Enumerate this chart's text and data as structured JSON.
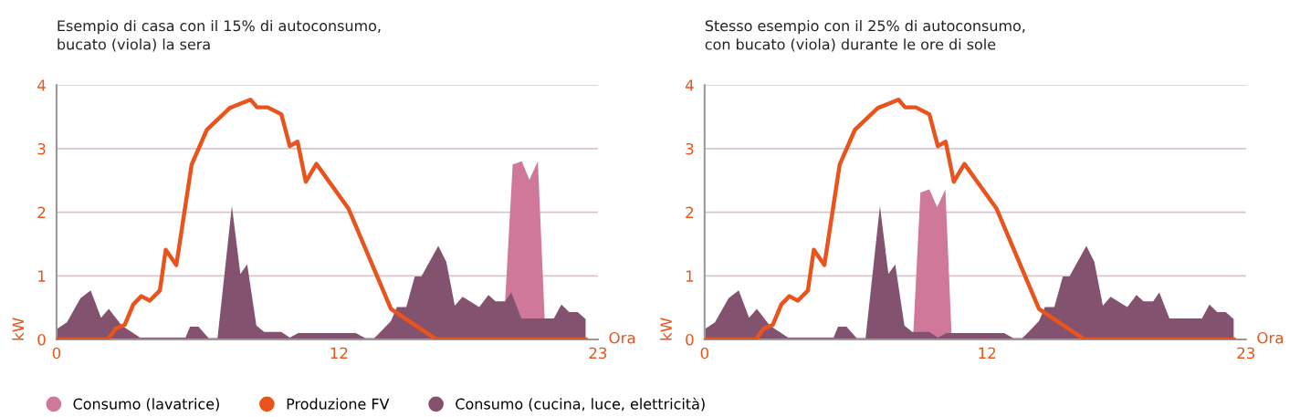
{
  "chart_data": [
    {
      "type": "area",
      "title": "Esempio di casa con il 15% di autoconsumo,\nbucato (viola) la sera",
      "xlabel": "Ora",
      "ylabel": "kW",
      "xlim": [
        0,
        23
      ],
      "xticks": [
        0,
        12,
        23
      ],
      "ylim": [
        0,
        4
      ],
      "yticks": [
        0,
        1,
        2,
        3,
        4
      ],
      "grid": "y",
      "legend": "bottom",
      "marker": "none",
      "series": [
        {
          "name": "Consumo (lavatrice)",
          "color": "#cf7899",
          "x": [
            19.06,
            19.38,
            19.77,
            20.09,
            20.45,
            20.74
          ],
          "values": [
            0.6,
            2.75,
            2.8,
            2.51,
            2.8,
            0.33
          ]
        },
        {
          "name": "Produzione FV",
          "type": "line",
          "color": "#e8541c",
          "x": [
            0.03,
            2.18,
            2.51,
            2.9,
            3.26,
            3.6,
            3.96,
            4.39,
            4.64,
            5.09,
            5.74,
            6.39,
            7.36,
            8.24,
            8.52,
            8.97,
            9.55,
            9.91,
            10.24,
            10.59,
            11.04,
            12.4,
            14.21,
            15.25,
            16.15,
            22.48
          ],
          "values": [
            0,
            0,
            0.17,
            0.23,
            0.55,
            0.68,
            0.61,
            0.77,
            1.41,
            1.17,
            2.75,
            3.3,
            3.64,
            3.77,
            3.65,
            3.65,
            3.54,
            3.04,
            3.11,
            2.48,
            2.76,
            2.06,
            0.48,
            0.22,
            0,
            0
          ]
        },
        {
          "name": "Consumo (cucina, luce, elettricità)",
          "color": "#82526f",
          "x": [
            0.03,
            0.44,
            1.02,
            1.45,
            1.89,
            2.22,
            2.77,
            3.55,
            5.48,
            5.67,
            6.03,
            6.46,
            6.84,
            7.45,
            7.81,
            8.1,
            8.49,
            8.82,
            9.55,
            9.91,
            10.27,
            12.72,
            13.11,
            13.5,
            13.69,
            14.21,
            14.46,
            14.86,
            15.22,
            15.5,
            16.22,
            16.56,
            16.92,
            17.25,
            17.96,
            18.35,
            18.65,
            19.06,
            19.32,
            19.75,
            21.13,
            21.45,
            21.78,
            22.14,
            22.48
          ],
          "values": [
            0.17,
            0.27,
            0.65,
            0.77,
            0.34,
            0.48,
            0.22,
            0.03,
            0.03,
            0.2,
            0.2,
            0.02,
            0.02,
            2.1,
            1.03,
            1.18,
            0.22,
            0.12,
            0.12,
            0.03,
            0.1,
            0.1,
            0.02,
            0.02,
            0.09,
            0.29,
            0.51,
            0.51,
            0.99,
            0.99,
            1.47,
            1.22,
            0.53,
            0.67,
            0.51,
            0.7,
            0.6,
            0.6,
            0.74,
            0.33,
            0.33,
            0.55,
            0.43,
            0.43,
            0.32
          ]
        }
      ]
    },
    {
      "type": "area",
      "title": "Stesso esempio con il 25% di autoconsumo,\ncon bucato (viola) durante le ore di sole",
      "xlabel": "Ora",
      "ylabel": "kW",
      "xlim": [
        0,
        23
      ],
      "xticks": [
        0,
        12,
        23
      ],
      "ylim": [
        0,
        4
      ],
      "yticks": [
        0,
        1,
        2,
        3,
        4
      ],
      "grid": "y",
      "marker": "none",
      "series": [
        {
          "color": "#cf7899",
          "x": [
            8.87,
            9.17,
            9.55,
            9.88,
            10.23,
            10.49
          ],
          "values": [
            0.12,
            2.31,
            2.36,
            2.08,
            2.36,
            0.1
          ]
        },
        {
          "type": "line",
          "color": "#e8541c",
          "x": [
            0.03,
            2.18,
            2.51,
            2.9,
            3.26,
            3.6,
            3.96,
            4.39,
            4.64,
            5.09,
            5.74,
            6.39,
            7.36,
            8.24,
            8.52,
            8.97,
            9.55,
            9.91,
            10.24,
            10.59,
            11.04,
            12.4,
            14.21,
            15.25,
            16.15,
            22.48
          ],
          "values": [
            0,
            0,
            0.17,
            0.23,
            0.55,
            0.68,
            0.61,
            0.77,
            1.41,
            1.17,
            2.75,
            3.3,
            3.64,
            3.77,
            3.65,
            3.65,
            3.54,
            3.04,
            3.11,
            2.48,
            2.76,
            2.06,
            0.48,
            0.22,
            0,
            0
          ]
        },
        {
          "color": "#82526f",
          "x": [
            0.03,
            0.44,
            1.02,
            1.45,
            1.89,
            2.22,
            2.77,
            3.55,
            5.48,
            5.67,
            6.03,
            6.46,
            6.84,
            7.45,
            7.81,
            8.1,
            8.49,
            8.82,
            9.55,
            9.91,
            10.27,
            12.72,
            13.11,
            13.5,
            13.69,
            14.21,
            14.46,
            14.86,
            15.22,
            15.5,
            16.22,
            16.56,
            16.92,
            17.25,
            17.96,
            18.35,
            18.65,
            19.06,
            19.32,
            19.75,
            21.13,
            21.45,
            21.78,
            22.14,
            22.48
          ],
          "values": [
            0.17,
            0.27,
            0.65,
            0.77,
            0.34,
            0.48,
            0.22,
            0.03,
            0.03,
            0.2,
            0.2,
            0.02,
            0.02,
            2.1,
            1.03,
            1.18,
            0.22,
            0.12,
            0.12,
            0.03,
            0.1,
            0.1,
            0.02,
            0.02,
            0.09,
            0.29,
            0.51,
            0.51,
            0.99,
            0.99,
            1.47,
            1.22,
            0.53,
            0.67,
            0.51,
            0.7,
            0.6,
            0.6,
            0.74,
            0.33,
            0.33,
            0.55,
            0.43,
            0.43,
            0.32
          ]
        }
      ]
    }
  ]
}
